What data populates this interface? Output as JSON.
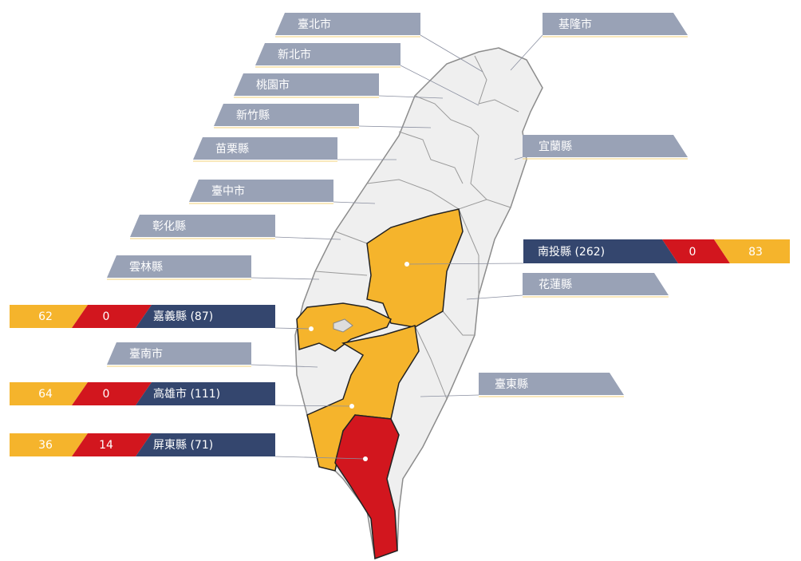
{
  "labels": [
    "臺北市",
    "新北市",
    "桃園市",
    "新竹縣",
    "苗栗縣",
    "臺中市",
    "彰化縣",
    "雲林縣",
    "臺南市",
    "基隆市",
    "宜蘭縣",
    "花蓮縣",
    "臺東縣"
  ],
  "stats": [
    {
      "label": "南投縣 (262)",
      "red": 0,
      "orange": 83
    },
    {
      "label": "嘉義縣 (87)",
      "red": 0,
      "orange": 62
    },
    {
      "label": "高雄市 (111)",
      "red": 0,
      "orange": 64
    },
    {
      "label": "屏東縣 (71)",
      "red": 14,
      "orange": 36
    }
  ]
}
